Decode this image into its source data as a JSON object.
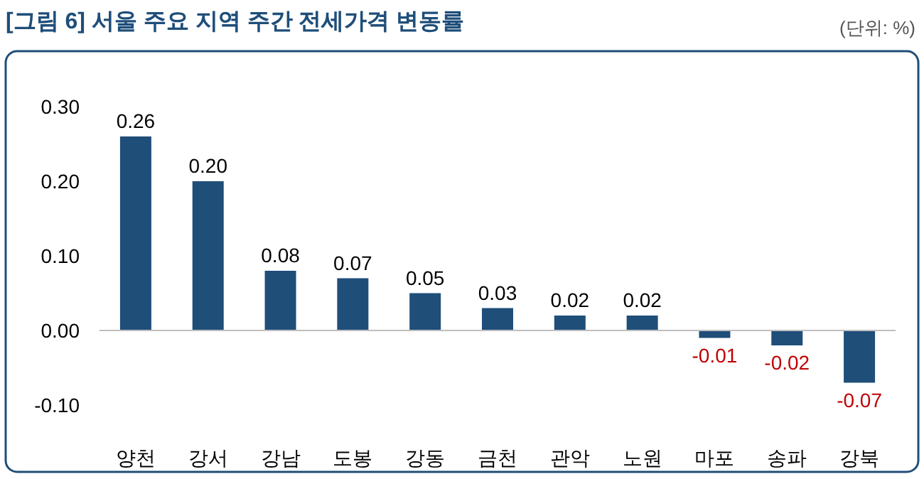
{
  "chart_data": {
    "type": "bar",
    "title": "[그림 6] 서울 주요 지역 주간 전세가격 변동률",
    "annotations": [
      "(단위: %)"
    ],
    "categories": [
      "양천",
      "강서",
      "강남",
      "도봉",
      "강동",
      "금천",
      "관악",
      "노원",
      "마포",
      "송파",
      "강북"
    ],
    "values": [
      0.26,
      0.2,
      0.08,
      0.07,
      0.05,
      0.03,
      0.02,
      0.02,
      -0.01,
      -0.02,
      -0.07
    ],
    "value_labels": [
      "0.26",
      "0.20",
      "0.08",
      "0.07",
      "0.05",
      "0.03",
      "0.02",
      "0.02",
      "-0.01",
      "-0.02",
      "-0.07"
    ],
    "color": "#1f4e79",
    "ylim": [
      -0.1,
      0.3
    ],
    "yticks": [
      {
        "value": -0.1,
        "label": "-0.10"
      },
      {
        "value": 0,
        "label": "0.00"
      },
      {
        "value": 0.1,
        "label": "0.10"
      },
      {
        "value": 0.2,
        "label": "0.20"
      },
      {
        "value": 0.3,
        "label": "0.30"
      }
    ]
  }
}
